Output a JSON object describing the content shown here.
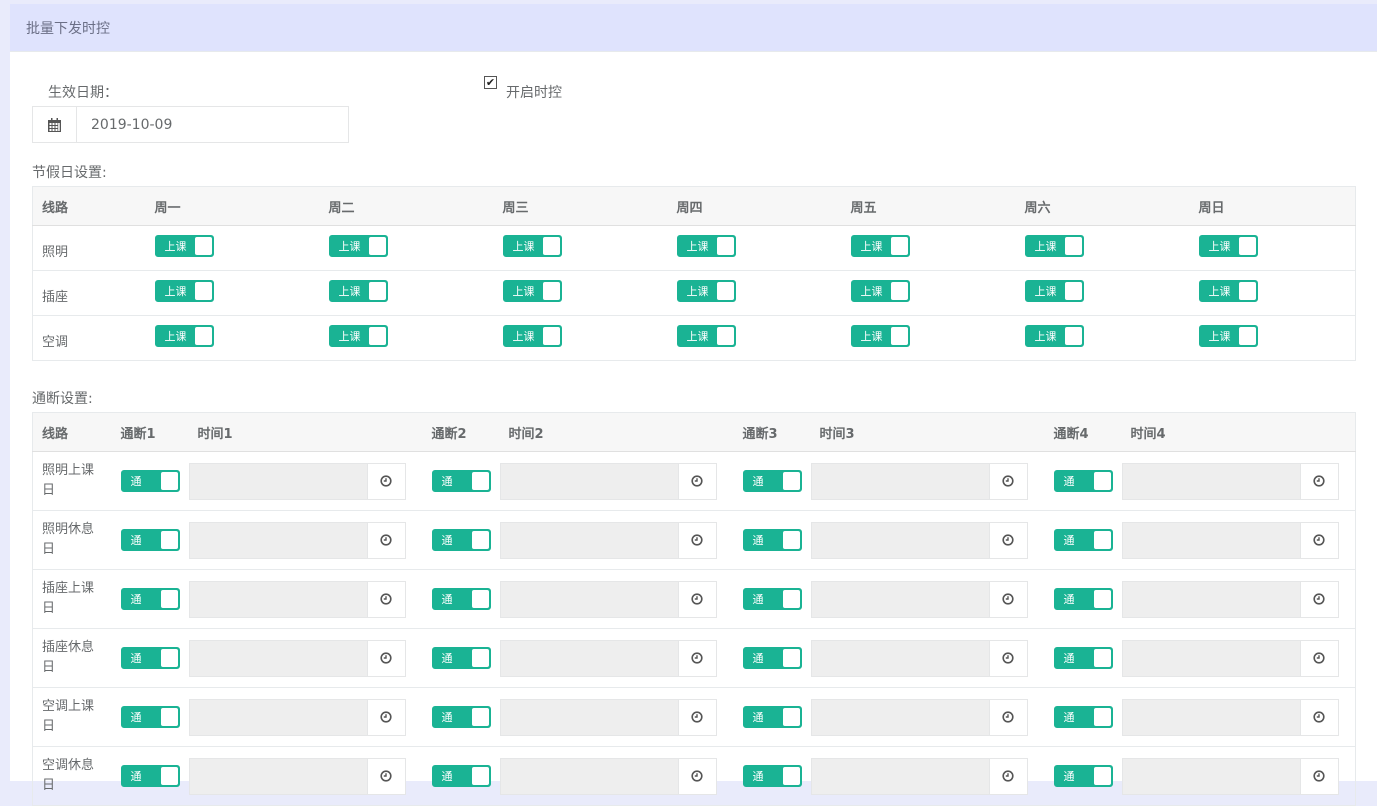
{
  "header": {
    "title": "批量下发时控"
  },
  "form": {
    "date_label": "生效日期：",
    "date_value": "2019-10-09",
    "enable_label": "开启时控",
    "enable_checked": true
  },
  "holiday": {
    "title": "节假日设置:",
    "columns": [
      "线路",
      "周一",
      "周二",
      "周三",
      "周四",
      "周五",
      "周六",
      "周日"
    ],
    "rows": [
      "照明",
      "插座",
      "空调"
    ],
    "toggle_label": "上课"
  },
  "onoff": {
    "title": "通断设置:",
    "columns": [
      "线路",
      "通断1",
      "时间1",
      "通断2",
      "时间2",
      "通断3",
      "时间3",
      "通断4",
      "时间4"
    ],
    "rows": [
      "照明上课日",
      "照明休息日",
      "插座上课日",
      "插座休息日",
      "空调上课日",
      "空调休息日"
    ],
    "toggle_label": "通"
  },
  "colors": {
    "accent": "#1ab394",
    "header_bg": "#dfe3fd"
  }
}
